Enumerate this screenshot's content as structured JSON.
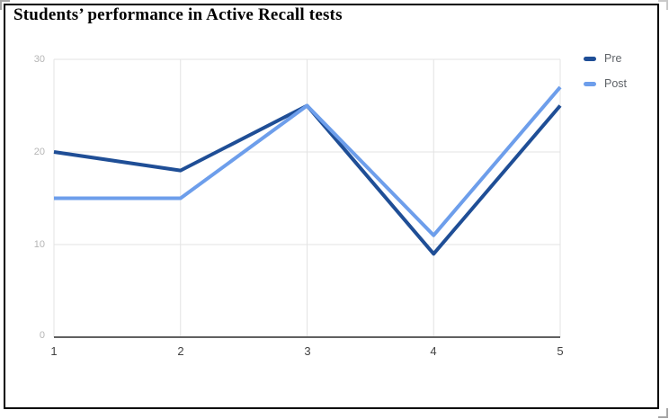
{
  "page": {
    "title": "Students’ performance in Active Recall tests"
  },
  "chart_data": {
    "type": "line",
    "title": "Students’ performance in Active Recall tests",
    "x": [
      1,
      2,
      3,
      4,
      5
    ],
    "xticks": [
      "1",
      "2",
      "3",
      "4",
      "5"
    ],
    "yticks": [
      0,
      10,
      20,
      30
    ],
    "ylim": [
      0,
      30
    ],
    "grid": true,
    "legend_position": "top-right",
    "series": [
      {
        "name": "Pre",
        "color": "#1f4e96",
        "values": [
          20,
          18,
          25,
          9,
          25
        ]
      },
      {
        "name": "Post",
        "color": "#6d9eeb",
        "values": [
          15,
          15,
          25,
          11,
          27
        ]
      }
    ],
    "gridline_color": "#e3e3e3",
    "axis_color": "#616161",
    "line_width": 4
  }
}
